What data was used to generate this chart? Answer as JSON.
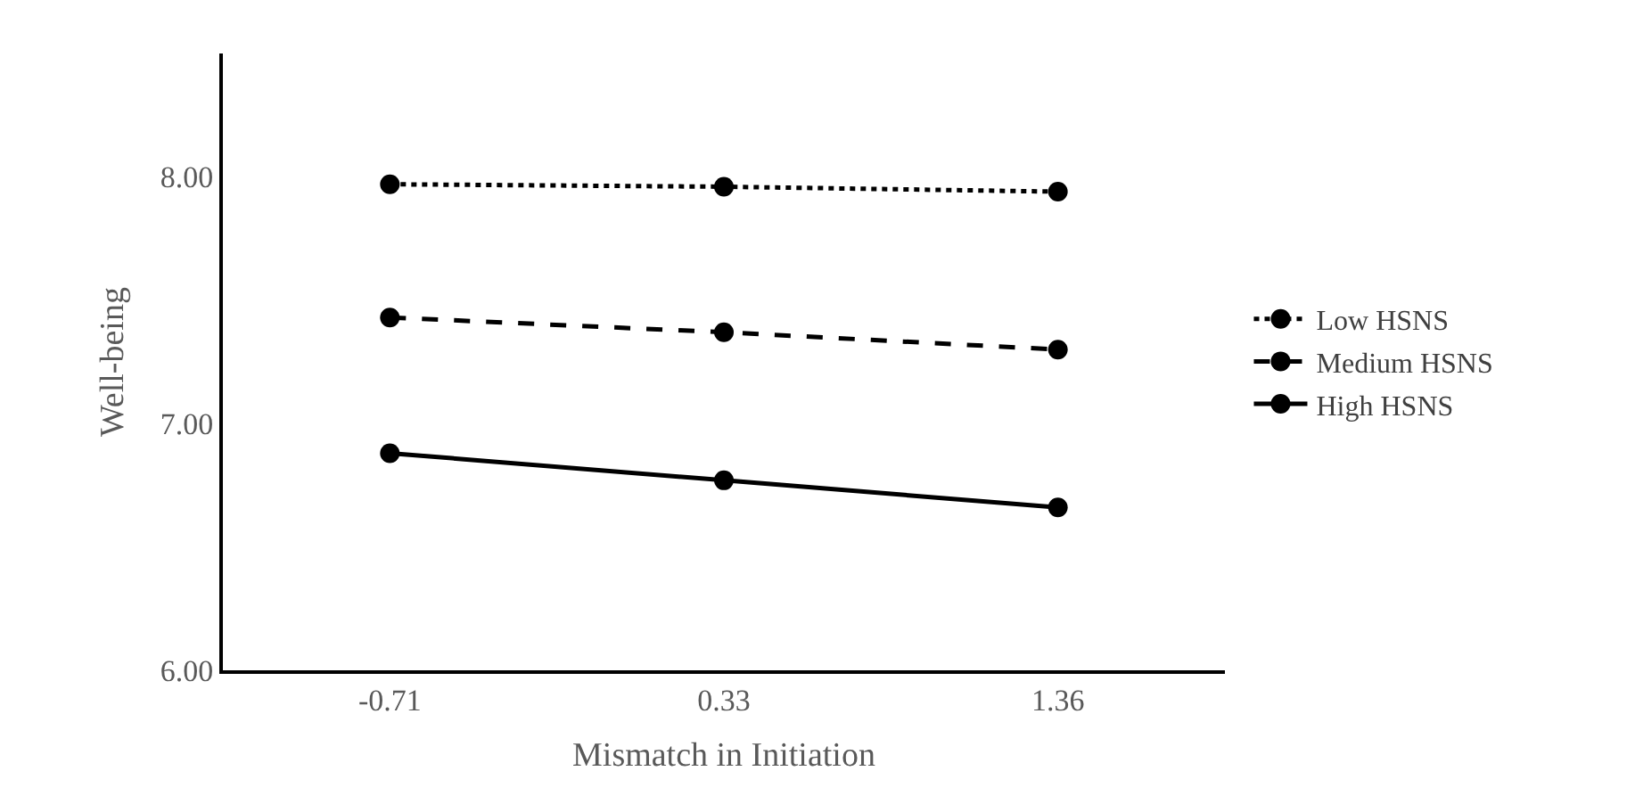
{
  "chart_data": {
    "type": "line",
    "xlabel": "Mismatch in Initiation",
    "ylabel": "Well-being",
    "categories": [
      "-0.71",
      "0.33",
      "1.36"
    ],
    "series": [
      {
        "name": "Low HSNS",
        "color": "#000000",
        "line_style": "dotted",
        "values": [
          7.97,
          7.96,
          7.94
        ]
      },
      {
        "name": "Medium HSNS",
        "color": "#000000",
        "line_style": "dashed",
        "values": [
          7.43,
          7.37,
          7.3
        ]
      },
      {
        "name": "High HSNS",
        "color": "#000000",
        "line_style": "solid",
        "values": [
          6.88,
          6.77,
          6.66
        ]
      }
    ],
    "ylim": [
      6,
      8.5
    ],
    "yticks": [
      {
        "value": 6,
        "label": "6.00"
      },
      {
        "value": 7,
        "label": "7.00"
      },
      {
        "value": 8,
        "label": "8.00"
      }
    ],
    "legend": "right",
    "marker": "circle"
  }
}
